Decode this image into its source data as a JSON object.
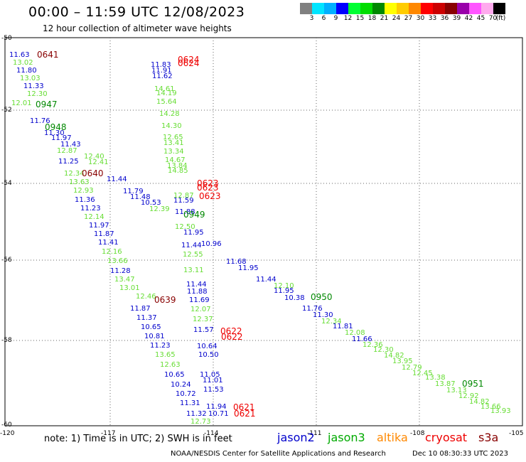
{
  "header": {
    "title": "00:00 – 11:59 UTC 12/08/2023",
    "subtitle": "12 hour collection of altimeter wave heights"
  },
  "colorbar": {
    "colors": [
      "#808080",
      "#00e5ff",
      "#00b0ff",
      "#0000ff",
      "#00ff33",
      "#00dd00",
      "#008800",
      "#ffff00",
      "#ffcc00",
      "#ff8800",
      "#ff0000",
      "#cc0000",
      "#880000",
      "#9900aa",
      "#ff55ff",
      "#ffaaee",
      "#000000"
    ],
    "labels": [
      "3",
      "6",
      "9",
      "12",
      "15",
      "18",
      "21",
      "24",
      "27",
      "30",
      "33",
      "36",
      "39",
      "42",
      "45",
      "70",
      "(ft)"
    ]
  },
  "axes": {
    "lat_labels": [
      "-50",
      "-52",
      "-54",
      "-56",
      "-58",
      "-60"
    ],
    "lon_labels": [
      "-120",
      "-117",
      "-114",
      "-111",
      "-108",
      "-105"
    ]
  },
  "satellite_colors": {
    "jason2": "#0000cc",
    "jason3": "#00aa00",
    "altika": "#ff8800",
    "cryosat": "#ee0000",
    "s3a": "#880000"
  },
  "track_colors": {
    "blue": "#0000cc",
    "green": "#66dd33",
    "dkgreen": "#008800",
    "red": "#ee0000",
    "maroon": "#880000"
  },
  "observations": [
    {
      "t": "11.63",
      "c": "blue"
    },
    {
      "t": "13.02",
      "c": "green"
    },
    {
      "t": "11.80",
      "c": "blue"
    },
    {
      "t": "13.03",
      "c": "green"
    },
    {
      "t": "11.33",
      "c": "blue"
    },
    {
      "t": "12.30",
      "c": "green"
    },
    {
      "t": "12.01",
      "c": "green"
    },
    {
      "t": "11.76",
      "c": "blue"
    },
    {
      "t": "11.30",
      "c": "blue"
    },
    {
      "t": "11.97",
      "c": "blue"
    },
    {
      "t": "11.43",
      "c": "blue"
    },
    {
      "t": "12.87",
      "c": "green"
    },
    {
      "t": "12.40",
      "c": "green"
    },
    {
      "t": "11.25",
      "c": "blue"
    },
    {
      "t": "12.41",
      "c": "green"
    },
    {
      "t": "12.34",
      "c": "green"
    },
    {
      "t": "13.63",
      "c": "green"
    },
    {
      "t": "11.44",
      "c": "blue"
    },
    {
      "t": "11.79",
      "c": "blue"
    },
    {
      "t": "12.93",
      "c": "green"
    },
    {
      "t": "11.48",
      "c": "blue"
    },
    {
      "t": "11.36",
      "c": "blue"
    },
    {
      "t": "10.53",
      "c": "blue"
    },
    {
      "t": "11.23",
      "c": "blue"
    },
    {
      "t": "12.14",
      "c": "green"
    },
    {
      "t": "11.97",
      "c": "blue"
    },
    {
      "t": "11.87",
      "c": "blue"
    },
    {
      "t": "11.41",
      "c": "blue"
    },
    {
      "t": "12.16",
      "c": "green"
    },
    {
      "t": "13.66",
      "c": "green"
    },
    {
      "t": "11.28",
      "c": "blue"
    },
    {
      "t": "13.47",
      "c": "green"
    },
    {
      "t": "13.01",
      "c": "green"
    },
    {
      "t": "12.46",
      "c": "green"
    },
    {
      "t": "11.87",
      "c": "blue"
    },
    {
      "t": "11.37",
      "c": "blue"
    },
    {
      "t": "10.65",
      "c": "blue"
    },
    {
      "t": "10.81",
      "c": "blue"
    },
    {
      "t": "11.23",
      "c": "blue"
    },
    {
      "t": "13.65",
      "c": "green"
    },
    {
      "t": "12.63",
      "c": "green"
    },
    {
      "t": "10.65",
      "c": "blue"
    },
    {
      "t": "10.24",
      "c": "blue"
    },
    {
      "t": "10.72",
      "c": "blue"
    },
    {
      "t": "11.31",
      "c": "blue"
    },
    {
      "t": "11.32",
      "c": "blue"
    },
    {
      "t": "10.71",
      "c": "blue"
    },
    {
      "t": "11.94",
      "c": "blue"
    },
    {
      "t": "12.73",
      "c": "green"
    },
    {
      "t": "11.83",
      "c": "blue"
    },
    {
      "t": "11.91",
      "c": "blue"
    },
    {
      "t": "11.62",
      "c": "blue"
    },
    {
      "t": "14.61",
      "c": "green"
    },
    {
      "t": "14.19",
      "c": "green"
    },
    {
      "t": "15.64",
      "c": "green"
    },
    {
      "t": "14.28",
      "c": "green"
    },
    {
      "t": "14.30",
      "c": "green"
    },
    {
      "t": "12.65",
      "c": "green"
    },
    {
      "t": "13.41",
      "c": "green"
    },
    {
      "t": "13.34",
      "c": "green"
    },
    {
      "t": "14.67",
      "c": "green"
    },
    {
      "t": "13.84",
      "c": "green"
    },
    {
      "t": "14.85",
      "c": "green"
    },
    {
      "t": "12.87",
      "c": "green"
    },
    {
      "t": "11.59",
      "c": "blue"
    },
    {
      "t": "12.39",
      "c": "green"
    },
    {
      "t": "11.88",
      "c": "blue"
    },
    {
      "t": "12.50",
      "c": "green"
    },
    {
      "t": "11.95",
      "c": "blue"
    },
    {
      "t": "10.96",
      "c": "blue"
    },
    {
      "t": "11.44",
      "c": "blue"
    },
    {
      "t": "12.55",
      "c": "green"
    },
    {
      "t": "13.11",
      "c": "green"
    },
    {
      "t": "11.44",
      "c": "blue"
    },
    {
      "t": "11.88",
      "c": "blue"
    },
    {
      "t": "11.69",
      "c": "blue"
    },
    {
      "t": "12.07",
      "c": "green"
    },
    {
      "t": "12.37",
      "c": "green"
    },
    {
      "t": "11.57",
      "c": "blue"
    },
    {
      "t": "10.64",
      "c": "blue"
    },
    {
      "t": "10.50",
      "c": "blue"
    },
    {
      "t": "11.05",
      "c": "blue"
    },
    {
      "t": "11.01",
      "c": "blue"
    },
    {
      "t": "11.53",
      "c": "blue"
    },
    {
      "t": "11.68",
      "c": "blue"
    },
    {
      "t": "11.95",
      "c": "blue"
    },
    {
      "t": "11.44",
      "c": "blue"
    },
    {
      "t": "12.10",
      "c": "green"
    },
    {
      "t": "11.95",
      "c": "blue"
    },
    {
      "t": "10.38",
      "c": "blue"
    },
    {
      "t": "11.76",
      "c": "blue"
    },
    {
      "t": "11.30",
      "c": "blue"
    },
    {
      "t": "12.34",
      "c": "green"
    },
    {
      "t": "11.81",
      "c": "blue"
    },
    {
      "t": "12.08",
      "c": "green"
    },
    {
      "t": "11.66",
      "c": "blue"
    },
    {
      "t": "12.36",
      "c": "green"
    },
    {
      "t": "12.30",
      "c": "green"
    },
    {
      "t": "14.82",
      "c": "green"
    },
    {
      "t": "13.95",
      "c": "green"
    },
    {
      "t": "12.79",
      "c": "green"
    },
    {
      "t": "12.45",
      "c": "green"
    },
    {
      "t": "13.38",
      "c": "green"
    },
    {
      "t": "13.87",
      "c": "green"
    },
    {
      "t": "13.13",
      "c": "green"
    },
    {
      "t": "12.92",
      "c": "green"
    },
    {
      "t": "14.82",
      "c": "green"
    },
    {
      "t": "13.66",
      "c": "green"
    },
    {
      "t": "13.93",
      "c": "green"
    }
  ],
  "pass_labels": [
    {
      "t": "0641",
      "c": "maroon"
    },
    {
      "t": "0947",
      "c": "dkgreen"
    },
    {
      "t": "0948",
      "c": "dkgreen"
    },
    {
      "t": "0640",
      "c": "maroon"
    },
    {
      "t": "0624",
      "c": "red"
    },
    {
      "t": "0624",
      "c": "red"
    },
    {
      "t": "0623",
      "c": "red"
    },
    {
      "t": "0623",
      "c": "red"
    },
    {
      "t": "0623",
      "c": "red"
    },
    {
      "t": "0949",
      "c": "dkgreen"
    },
    {
      "t": "0639",
      "c": "maroon"
    },
    {
      "t": "0622",
      "c": "red"
    },
    {
      "t": "0622",
      "c": "red"
    },
    {
      "t": "0621",
      "c": "red"
    },
    {
      "t": "0621",
      "c": "red"
    },
    {
      "t": "0950",
      "c": "dkgreen"
    },
    {
      "t": "0951",
      "c": "dkgreen"
    }
  ],
  "footer": {
    "note": "note: 1) Time is in UTC; 2) SWH is in feet",
    "legend": [
      "jason2",
      "jason3",
      "altika",
      "cryosat",
      "s3a"
    ],
    "credit": "NOAA/NESDIS Center for Satellite Applications and Research",
    "timestamp": "Dec 10 08:30:33 UTC 2023"
  }
}
